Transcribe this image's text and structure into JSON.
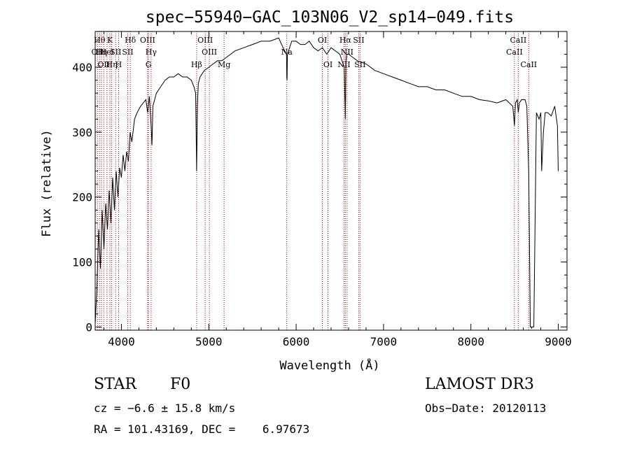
{
  "chart_data": {
    "type": "line",
    "title": "spec−55940−GAC_103N06_V2_sp14−049.fits",
    "xlabel": "Wavelength (Å)",
    "ylabel": "Flux (relative)",
    "xlim": [
      3700,
      9100
    ],
    "ylim": [
      -5,
      455
    ],
    "xticks": [
      4000,
      5000,
      6000,
      7000,
      8000,
      9000
    ],
    "yticks": [
      0,
      100,
      200,
      300,
      400
    ],
    "series": [
      {
        "name": "flux",
        "x": [
          3700,
          3720,
          3740,
          3760,
          3780,
          3800,
          3820,
          3840,
          3860,
          3880,
          3900,
          3920,
          3940,
          3960,
          3980,
          4000,
          4020,
          4040,
          4060,
          4080,
          4100,
          4120,
          4150,
          4180,
          4200,
          4220,
          4250,
          4280,
          4300,
          4320,
          4340,
          4350,
          4360,
          4380,
          4400,
          4450,
          4500,
          4550,
          4600,
          4650,
          4700,
          4750,
          4800,
          4830,
          4850,
          4861,
          4870,
          4880,
          4900,
          4950,
          5000,
          5050,
          5100,
          5150,
          5200,
          5250,
          5300,
          5400,
          5500,
          5600,
          5700,
          5800,
          5850,
          5890,
          5893,
          5896,
          5900,
          5950,
          6000,
          6050,
          6100,
          6150,
          6200,
          6250,
          6300,
          6350,
          6400,
          6450,
          6500,
          6550,
          6560,
          6563,
          6566,
          6570,
          6580,
          6600,
          6650,
          6700,
          6800,
          6900,
          7000,
          7100,
          7200,
          7300,
          7400,
          7500,
          7600,
          7700,
          7800,
          7900,
          8000,
          8100,
          8200,
          8300,
          8400,
          8480,
          8498,
          8510,
          8530,
          8542,
          8555,
          8580,
          8620,
          8640,
          8662,
          8680,
          8690,
          8695,
          8700,
          8720,
          8750,
          8780,
          8800,
          8810,
          8830,
          8850,
          8880,
          8920,
          8960,
          8990,
          9000
        ],
        "y": [
          5,
          60,
          150,
          90,
          180,
          120,
          190,
          150,
          210,
          160,
          230,
          180,
          240,
          200,
          245,
          230,
          265,
          240,
          270,
          255,
          300,
          285,
          320,
          330,
          335,
          340,
          345,
          350,
          330,
          355,
          310,
          280,
          340,
          350,
          360,
          370,
          380,
          385,
          385,
          390,
          385,
          385,
          380,
          370,
          360,
          240,
          340,
          375,
          385,
          395,
          400,
          405,
          410,
          410,
          415,
          420,
          425,
          430,
          435,
          440,
          440,
          445,
          430,
          420,
          385,
          380,
          420,
          440,
          440,
          435,
          435,
          440,
          430,
          425,
          430,
          420,
          430,
          425,
          420,
          400,
          340,
          320,
          350,
          410,
          420,
          420,
          415,
          410,
          405,
          395,
          390,
          385,
          380,
          375,
          370,
          370,
          365,
          365,
          360,
          355,
          355,
          350,
          348,
          345,
          350,
          340,
          310,
          345,
          350,
          330,
          345,
          350,
          350,
          340,
          240,
          0,
          0,
          -2,
          0,
          0,
          330,
          320,
          330,
          240,
          300,
          330,
          330,
          325,
          340,
          310,
          240
        ]
      }
    ],
    "lines": [
      {
        "wavelength": 3727,
        "label": "OII",
        "row": 2
      },
      {
        "wavelength": 3750,
        "label": "Hθ",
        "row": 1
      },
      {
        "wavelength": 3771,
        "label": "Hη",
        "row": 2
      },
      {
        "wavelength": 3798,
        "label": "OII",
        "row": 3
      },
      {
        "wavelength": 3835,
        "label": "HeI",
        "row": 2
      },
      {
        "wavelength": 3868,
        "label": "K",
        "row": 1
      },
      {
        "wavelength": 3889,
        "label": "Hη",
        "row": 3
      },
      {
        "wavelength": 3934,
        "label": "SII",
        "row": 2
      },
      {
        "wavelength": 3968,
        "label": "H",
        "row": 3
      },
      {
        "wavelength": 4102,
        "label": "Hδ",
        "row": 1
      },
      {
        "wavelength": 4072,
        "label": "SII",
        "row": 2
      },
      {
        "wavelength": 4300,
        "label": "OIII",
        "row": 1
      },
      {
        "wavelength": 4340,
        "label": "Hγ",
        "row": 2
      },
      {
        "wavelength": 4310,
        "label": "G",
        "row": 3
      },
      {
        "wavelength": 4861,
        "label": "Hβ",
        "row": 3
      },
      {
        "wavelength": 4959,
        "label": "OIII",
        "row": 1
      },
      {
        "wavelength": 5007,
        "label": "OIII",
        "row": 2
      },
      {
        "wavelength": 5175,
        "label": "Mg",
        "row": 3
      },
      {
        "wavelength": 5893,
        "label": "Na",
        "row": 2
      },
      {
        "wavelength": 6300,
        "label": "OI",
        "row": 1
      },
      {
        "wavelength": 6364,
        "label": "OI",
        "row": 3
      },
      {
        "wavelength": 6548,
        "label": "NII",
        "row": 3
      },
      {
        "wavelength": 6563,
        "label": "Hα",
        "row": 1
      },
      {
        "wavelength": 6583,
        "label": "NII",
        "row": 2
      },
      {
        "wavelength": 6716,
        "label": "SII",
        "row": 1
      },
      {
        "wavelength": 6731,
        "label": "SII",
        "row": 3
      },
      {
        "wavelength": 8498,
        "label": "CaII",
        "row": 2
      },
      {
        "wavelength": 8542,
        "label": "CaII",
        "row": 1
      },
      {
        "wavelength": 8662,
        "label": "CaII",
        "row": 3
      }
    ]
  },
  "info": {
    "object_class": "STAR",
    "subclass": "F0",
    "survey": "LAMOST DR3",
    "cz": "cz = −6.6 ± 15.8 km/s",
    "obs_date": "Obs−Date: 20120113",
    "coords": "RA = 101.43169, DEC =    6.97673"
  }
}
